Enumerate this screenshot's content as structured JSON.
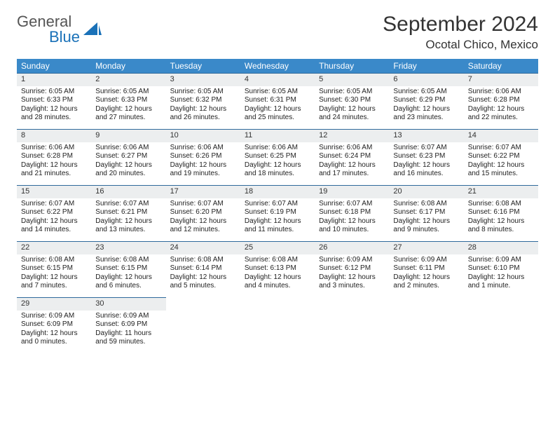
{
  "logo": {
    "general": "General",
    "blue": "Blue"
  },
  "title": "September 2024",
  "location": "Ocotal Chico, Mexico",
  "colors": {
    "header_bg": "#3a89c9",
    "header_fg": "#ffffff",
    "daynum_bg": "#eceeef",
    "row_divider": "#2f6a9c",
    "logo_blue": "#1a71b8",
    "logo_gray": "#555555"
  },
  "weekdays": [
    "Sunday",
    "Monday",
    "Tuesday",
    "Wednesday",
    "Thursday",
    "Friday",
    "Saturday"
  ],
  "days": [
    {
      "n": "1",
      "sr": "6:05 AM",
      "ss": "6:33 PM",
      "dl": "12 hours and 28 minutes."
    },
    {
      "n": "2",
      "sr": "6:05 AM",
      "ss": "6:33 PM",
      "dl": "12 hours and 27 minutes."
    },
    {
      "n": "3",
      "sr": "6:05 AM",
      "ss": "6:32 PM",
      "dl": "12 hours and 26 minutes."
    },
    {
      "n": "4",
      "sr": "6:05 AM",
      "ss": "6:31 PM",
      "dl": "12 hours and 25 minutes."
    },
    {
      "n": "5",
      "sr": "6:05 AM",
      "ss": "6:30 PM",
      "dl": "12 hours and 24 minutes."
    },
    {
      "n": "6",
      "sr": "6:05 AM",
      "ss": "6:29 PM",
      "dl": "12 hours and 23 minutes."
    },
    {
      "n": "7",
      "sr": "6:06 AM",
      "ss": "6:28 PM",
      "dl": "12 hours and 22 minutes."
    },
    {
      "n": "8",
      "sr": "6:06 AM",
      "ss": "6:28 PM",
      "dl": "12 hours and 21 minutes."
    },
    {
      "n": "9",
      "sr": "6:06 AM",
      "ss": "6:27 PM",
      "dl": "12 hours and 20 minutes."
    },
    {
      "n": "10",
      "sr": "6:06 AM",
      "ss": "6:26 PM",
      "dl": "12 hours and 19 minutes."
    },
    {
      "n": "11",
      "sr": "6:06 AM",
      "ss": "6:25 PM",
      "dl": "12 hours and 18 minutes."
    },
    {
      "n": "12",
      "sr": "6:06 AM",
      "ss": "6:24 PM",
      "dl": "12 hours and 17 minutes."
    },
    {
      "n": "13",
      "sr": "6:07 AM",
      "ss": "6:23 PM",
      "dl": "12 hours and 16 minutes."
    },
    {
      "n": "14",
      "sr": "6:07 AM",
      "ss": "6:22 PM",
      "dl": "12 hours and 15 minutes."
    },
    {
      "n": "15",
      "sr": "6:07 AM",
      "ss": "6:22 PM",
      "dl": "12 hours and 14 minutes."
    },
    {
      "n": "16",
      "sr": "6:07 AM",
      "ss": "6:21 PM",
      "dl": "12 hours and 13 minutes."
    },
    {
      "n": "17",
      "sr": "6:07 AM",
      "ss": "6:20 PM",
      "dl": "12 hours and 12 minutes."
    },
    {
      "n": "18",
      "sr": "6:07 AM",
      "ss": "6:19 PM",
      "dl": "12 hours and 11 minutes."
    },
    {
      "n": "19",
      "sr": "6:07 AM",
      "ss": "6:18 PM",
      "dl": "12 hours and 10 minutes."
    },
    {
      "n": "20",
      "sr": "6:08 AM",
      "ss": "6:17 PM",
      "dl": "12 hours and 9 minutes."
    },
    {
      "n": "21",
      "sr": "6:08 AM",
      "ss": "6:16 PM",
      "dl": "12 hours and 8 minutes."
    },
    {
      "n": "22",
      "sr": "6:08 AM",
      "ss": "6:15 PM",
      "dl": "12 hours and 7 minutes."
    },
    {
      "n": "23",
      "sr": "6:08 AM",
      "ss": "6:15 PM",
      "dl": "12 hours and 6 minutes."
    },
    {
      "n": "24",
      "sr": "6:08 AM",
      "ss": "6:14 PM",
      "dl": "12 hours and 5 minutes."
    },
    {
      "n": "25",
      "sr": "6:08 AM",
      "ss": "6:13 PM",
      "dl": "12 hours and 4 minutes."
    },
    {
      "n": "26",
      "sr": "6:09 AM",
      "ss": "6:12 PM",
      "dl": "12 hours and 3 minutes."
    },
    {
      "n": "27",
      "sr": "6:09 AM",
      "ss": "6:11 PM",
      "dl": "12 hours and 2 minutes."
    },
    {
      "n": "28",
      "sr": "6:09 AM",
      "ss": "6:10 PM",
      "dl": "12 hours and 1 minute."
    },
    {
      "n": "29",
      "sr": "6:09 AM",
      "ss": "6:09 PM",
      "dl": "12 hours and 0 minutes."
    },
    {
      "n": "30",
      "sr": "6:09 AM",
      "ss": "6:09 PM",
      "dl": "11 hours and 59 minutes."
    }
  ],
  "labels": {
    "sunrise": "Sunrise:",
    "sunset": "Sunset:",
    "daylight": "Daylight:"
  },
  "layout": {
    "start_weekday": 0,
    "total_cells": 35
  }
}
